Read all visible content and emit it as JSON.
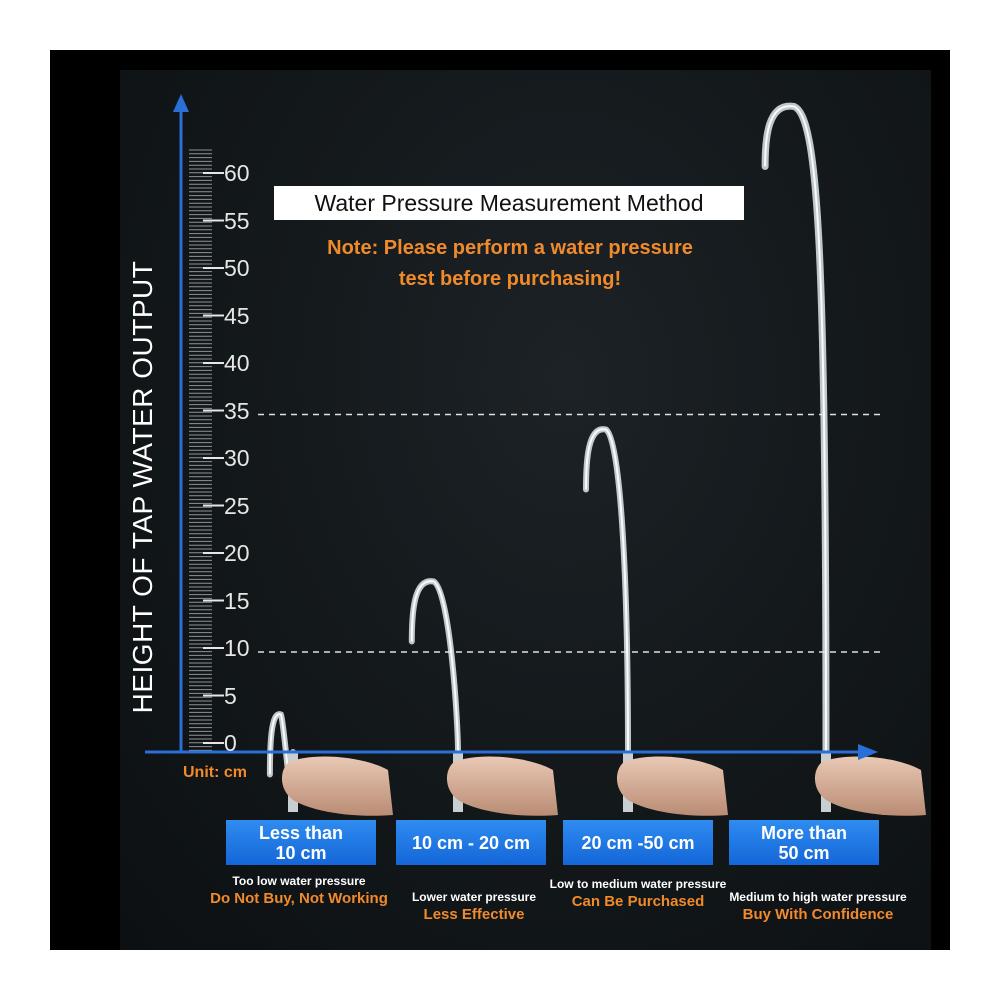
{
  "header": {
    "title": "Water Pressure Measurement Method",
    "note_line1": "Note: Please perform a water pressure",
    "note_line2": "test before purchasing!"
  },
  "axis": {
    "title": "HEIGHT OF TAP WATER OUTPUT",
    "unit": "Unit: cm",
    "ticks": [
      "60",
      "55",
      "50",
      "45",
      "40",
      "35",
      "30",
      "25",
      "20",
      "15",
      "10",
      "5",
      "0"
    ],
    "reference_lines": [
      35,
      10
    ]
  },
  "jets": [
    {
      "max_height_cm": 3
    },
    {
      "max_height_cm": 17
    },
    {
      "max_height_cm": 33
    },
    {
      "max_height_cm": 67
    }
  ],
  "categories": [
    {
      "range_line1": "Less than",
      "range_line2": "10 cm",
      "desc": "Too low water pressure",
      "verdict": "Do Not Buy, Not Working"
    },
    {
      "range_line1": "10 cm - 20 cm",
      "range_line2": "",
      "desc": "Lower water pressure",
      "verdict": "Less Effective"
    },
    {
      "range_line1": "20 cm -50 cm",
      "range_line2": "",
      "desc": "Low to medium water pressure",
      "verdict": "Can Be Purchased"
    },
    {
      "range_line1": "More than",
      "range_line2": "50 cm",
      "desc": "Medium to high water pressure",
      "verdict": "Buy With Confidence"
    }
  ],
  "colors": {
    "accent": "#f08a2a",
    "axis": "#2a6fd6",
    "badge": "#1e78e6"
  }
}
